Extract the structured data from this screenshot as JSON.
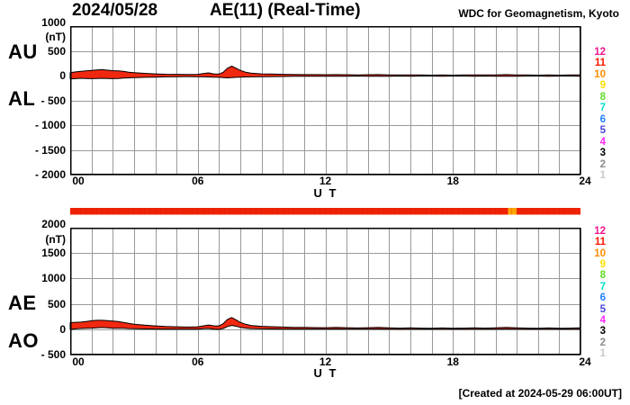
{
  "header": {
    "date": "2024/05/28",
    "title": "AE(11) (Real-Time)",
    "source": "WDC for Geomagnetism, Kyoto"
  },
  "footer": {
    "created_at": "[Created at 2024-05-29 06:00UT]"
  },
  "colors": {
    "trace_fill": "#f02810",
    "trace_outline": "#000000",
    "grid": "#9a9a9a",
    "frame": "#000000",
    "bar_red": "#ee2200",
    "bar_orange": "#ffa500"
  },
  "legend": {
    "station_counts": [
      "12",
      "11",
      "10",
      "9",
      "8",
      "7",
      "6",
      "5",
      "4",
      "3",
      "2",
      "1"
    ],
    "colors": [
      "#f0148c",
      "#ff1500",
      "#ff8c00",
      "#ffdf00",
      "#5fdc28",
      "#00dfc8",
      "#2080ff",
      "#4a46d8",
      "#ff28ff",
      "#000000",
      "#8c8c8c",
      "#c9c9c9"
    ]
  },
  "panel_top": {
    "left_labels": [
      "AU",
      "AL"
    ],
    "unit": "(nT)",
    "ytick_labels": [
      "1000",
      "500",
      "0",
      "- 500",
      "- 1000",
      "- 1500",
      "- 2000"
    ],
    "ytick_values": [
      1000,
      500,
      0,
      -500,
      -1000,
      -1500,
      -2000
    ],
    "xtick_labels": [
      "00",
      "06",
      "12",
      "18",
      "24"
    ],
    "xtick_values": [
      0,
      6,
      12,
      18,
      24
    ],
    "xlabel": "U T",
    "ylim": [
      -2000,
      1000
    ]
  },
  "panel_bottom": {
    "left_labels": [
      "AE",
      "AO"
    ],
    "unit": "(nT)",
    "ytick_labels": [
      "2000",
      "1500",
      "1000",
      "500",
      "0",
      "- 500"
    ],
    "ytick_values": [
      2000,
      1500,
      1000,
      500,
      0,
      -500
    ],
    "xtick_labels": [
      "00",
      "06",
      "12",
      "18",
      "24"
    ],
    "xtick_values": [
      0,
      6,
      12,
      18,
      24
    ],
    "xlabel": "U T",
    "ylim": [
      -500,
      2000
    ]
  },
  "status_bar": {
    "segments": [
      {
        "from": 0,
        "to": 20.6,
        "color": "#ee2200"
      },
      {
        "from": 20.6,
        "to": 21.0,
        "color": "#ffa500"
      },
      {
        "from": 21.0,
        "to": 24,
        "color": "#ee2200"
      }
    ]
  },
  "chart_data": [
    {
      "type": "area",
      "title": "AU / AL indices",
      "xlabel": "U T",
      "ylabel": "nT",
      "ylim": [
        -2000,
        1000
      ],
      "xlim": [
        0,
        24
      ],
      "grid": true,
      "x": [
        0,
        0.25,
        0.5,
        0.75,
        1,
        1.25,
        1.5,
        1.75,
        2,
        2.25,
        2.5,
        2.75,
        3,
        3.25,
        3.5,
        4,
        4.5,
        5,
        5.5,
        6,
        6.25,
        6.5,
        6.75,
        7,
        7.2,
        7.4,
        7.6,
        7.8,
        8,
        8.25,
        8.5,
        9,
        9.5,
        10,
        10.5,
        11,
        11.5,
        12,
        12.5,
        13,
        13.5,
        14,
        14.5,
        15,
        15.5,
        16,
        16.5,
        17,
        17.5,
        18,
        18.5,
        19,
        19.5,
        20,
        20.5,
        21,
        21.5,
        22,
        22.5,
        23,
        23.5,
        24
      ],
      "series": [
        {
          "name": "AU",
          "values": [
            60,
            75,
            85,
            95,
            105,
            115,
            120,
            110,
            100,
            95,
            85,
            70,
            60,
            52,
            45,
            35,
            28,
            25,
            22,
            25,
            40,
            55,
            35,
            30,
            70,
            150,
            190,
            150,
            105,
            70,
            50,
            35,
            30,
            25,
            22,
            20,
            20,
            18,
            20,
            18,
            15,
            18,
            20,
            15,
            12,
            15,
            12,
            10,
            12,
            10,
            12,
            15,
            12,
            15,
            20,
            15,
            12,
            10,
            12,
            10,
            12,
            15
          ]
        },
        {
          "name": "AL",
          "values": [
            -70,
            -62,
            -55,
            -58,
            -62,
            -60,
            -55,
            -58,
            -62,
            -58,
            -50,
            -45,
            -40,
            -38,
            -35,
            -30,
            -25,
            -22,
            -20,
            -22,
            -25,
            -28,
            -32,
            -35,
            -40,
            -45,
            -40,
            -35,
            -30,
            -28,
            -25,
            -22,
            -20,
            -18,
            -15,
            -15,
            -12,
            -12,
            -15,
            -12,
            -10,
            -12,
            -15,
            -12,
            -10,
            -12,
            -10,
            -10,
            -12,
            -10,
            -10,
            -12,
            -10,
            -12,
            -15,
            -12,
            -10,
            -10,
            -12,
            -10,
            -10,
            -12
          ]
        }
      ]
    },
    {
      "type": "area",
      "title": "AE / AO indices",
      "xlabel": "U T",
      "ylabel": "nT",
      "ylim": [
        -500,
        2000
      ],
      "xlim": [
        0,
        24
      ],
      "grid": true,
      "x": [
        0,
        0.25,
        0.5,
        0.75,
        1,
        1.25,
        1.5,
        1.75,
        2,
        2.25,
        2.5,
        2.75,
        3,
        3.25,
        3.5,
        4,
        4.5,
        5,
        5.5,
        6,
        6.25,
        6.5,
        6.75,
        7,
        7.2,
        7.4,
        7.6,
        7.8,
        8,
        8.25,
        8.5,
        9,
        9.5,
        10,
        10.5,
        11,
        11.5,
        12,
        12.5,
        13,
        13.5,
        14,
        14.5,
        15,
        15.5,
        16,
        16.5,
        17,
        17.5,
        18,
        18.5,
        19,
        19.5,
        20,
        20.5,
        21,
        21.5,
        22,
        22.5,
        23,
        23.5,
        24
      ],
      "series": [
        {
          "name": "AE",
          "values": [
            130,
            137,
            140,
            153,
            167,
            175,
            175,
            168,
            162,
            153,
            135,
            115,
            100,
            90,
            80,
            65,
            53,
            47,
            42,
            47,
            65,
            83,
            67,
            65,
            110,
            195,
            230,
            185,
            135,
            98,
            75,
            57,
            50,
            43,
            37,
            35,
            32,
            30,
            35,
            30,
            25,
            30,
            35,
            27,
            22,
            27,
            22,
            20,
            24,
            20,
            22,
            27,
            22,
            27,
            35,
            27,
            22,
            20,
            24,
            20,
            22,
            27
          ]
        },
        {
          "name": "AO",
          "values": [
            -5,
            7,
            15,
            19,
            22,
            28,
            33,
            26,
            19,
            19,
            18,
            13,
            10,
            7,
            5,
            3,
            2,
            2,
            1,
            2,
            8,
            14,
            2,
            -3,
            15,
            53,
            75,
            58,
            38,
            21,
            13,
            7,
            5,
            4,
            4,
            3,
            4,
            3,
            3,
            3,
            3,
            3,
            3,
            2,
            1,
            2,
            1,
            0,
            0,
            0,
            1,
            2,
            1,
            2,
            3,
            2,
            1,
            0,
            0,
            0,
            1,
            2
          ]
        }
      ]
    }
  ]
}
